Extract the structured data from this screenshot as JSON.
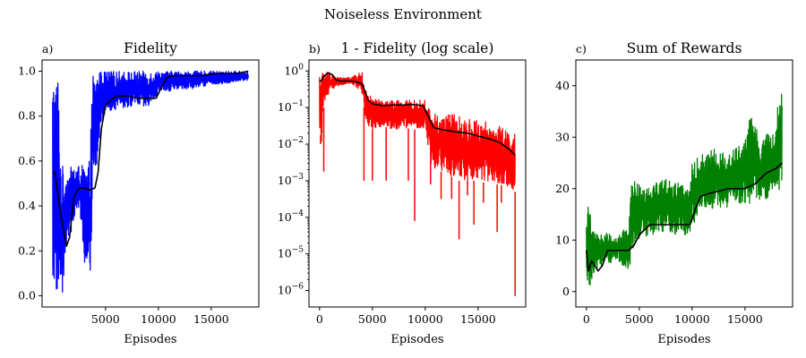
{
  "figure": {
    "title": "Noiseless Environment"
  },
  "chart_data": [
    {
      "type": "line",
      "panel_label": "a)",
      "title": "Fidelity",
      "xlabel": "Episodes",
      "ylabel": "",
      "xlim": [
        -1000,
        19500
      ],
      "ylim": [
        -0.05,
        1.05
      ],
      "log_y": false,
      "xticks": [
        5000,
        10000,
        15000
      ],
      "xtick_labels": [
        "5000",
        "10000",
        "15000"
      ],
      "yticks": [
        0.0,
        0.2,
        0.4,
        0.6,
        0.8,
        1.0
      ],
      "ytick_labels": [
        "0.0",
        "0.2",
        "0.4",
        "0.6",
        "0.8",
        "1.0"
      ],
      "colors": {
        "raw": "#0000ff",
        "smoothed": "#000000"
      },
      "series": [
        {
          "role": "raw-band-upper",
          "x": [
            0,
            300,
            500,
            800,
            1200,
            1600,
            2000,
            2500,
            3000,
            3500,
            3800,
            4000,
            4200,
            4500,
            5000,
            6000,
            7000,
            8000,
            9000,
            10000,
            11000,
            12000,
            13000,
            14000,
            15000,
            16000,
            17000,
            18500
          ],
          "y": [
            0.99,
            1.0,
            1.0,
            0.6,
            0.55,
            0.57,
            0.58,
            0.58,
            0.58,
            0.6,
            1.0,
            0.98,
            1.0,
            1.0,
            1.0,
            1.0,
            1.0,
            1.0,
            1.0,
            1.0,
            1.0,
            1.0,
            1.0,
            1.0,
            1.0,
            1.0,
            1.0,
            1.0
          ]
        },
        {
          "role": "raw-band-lower",
          "x": [
            0,
            300,
            500,
            800,
            1000,
            1200,
            1600,
            2000,
            2500,
            3000,
            3500,
            3800,
            4000,
            4200,
            4500,
            5000,
            6000,
            7000,
            8000,
            9000,
            10000,
            11000,
            12000,
            13000,
            14000,
            15000,
            16000,
            17000,
            18500
          ],
          "y": [
            0.0,
            0.0,
            0.0,
            0.0,
            0.0,
            0.2,
            0.23,
            0.35,
            0.38,
            0.13,
            0.0,
            0.45,
            0.5,
            0.55,
            0.75,
            0.82,
            0.83,
            0.84,
            0.84,
            0.83,
            0.9,
            0.91,
            0.92,
            0.92,
            0.93,
            0.94,
            0.94,
            0.95,
            0.96
          ]
        },
        {
          "role": "smoothed",
          "x": [
            0,
            200,
            400,
            700,
            1000,
            1300,
            1600,
            2000,
            2500,
            3000,
            3500,
            4000,
            4300,
            4600,
            5000,
            5500,
            6000,
            7000,
            8000,
            9000,
            9800,
            10300,
            10800,
            11500,
            12500,
            14000,
            15500,
            16500,
            17500,
            18500
          ],
          "y": [
            0.55,
            0.55,
            0.48,
            0.38,
            0.3,
            0.22,
            0.26,
            0.44,
            0.48,
            0.48,
            0.47,
            0.48,
            0.55,
            0.74,
            0.85,
            0.87,
            0.89,
            0.89,
            0.88,
            0.88,
            0.88,
            0.93,
            0.97,
            0.98,
            0.98,
            0.98,
            0.99,
            0.99,
            0.99,
            1.0
          ]
        }
      ]
    },
    {
      "type": "line",
      "panel_label": "b)",
      "title": "1 - Fidelity (log scale)",
      "xlabel": "Episodes",
      "ylabel": "",
      "xlim": [
        -1000,
        19500
      ],
      "ylim_log10": [
        -6.45,
        0.3
      ],
      "log_y": true,
      "xticks": [
        0,
        5000,
        10000,
        15000
      ],
      "xtick_labels": [
        "0",
        "5000",
        "10000",
        "15000"
      ],
      "yticks_log10": [
        -6,
        -5,
        -4,
        -3,
        -2,
        -1,
        0
      ],
      "ytick_bases": [
        "10",
        "10",
        "10",
        "10",
        "10",
        "10",
        "10"
      ],
      "ytick_exps": [
        "−6",
        "−5",
        "−4",
        "−3",
        "−2",
        "−1",
        "0"
      ],
      "colors": {
        "raw": "#ff0000",
        "smoothed": "#000000"
      },
      "series": [
        {
          "role": "raw-band-upper",
          "x": [
            0,
            400,
            800,
            1500,
            2500,
            3500,
            4000,
            4300,
            5000,
            6000,
            7000,
            8000,
            9000,
            10000,
            10500,
            11000,
            12000,
            13000,
            14000,
            15000,
            16000,
            17000,
            18500
          ],
          "y_log10": [
            0.0,
            0.0,
            0.0,
            -0.15,
            -0.2,
            -0.1,
            0.0,
            -0.5,
            -0.75,
            -0.8,
            -0.8,
            -0.8,
            -0.8,
            -0.8,
            -1.1,
            -1.15,
            -1.15,
            -1.2,
            -1.3,
            -1.35,
            -1.4,
            -1.5,
            -1.7
          ]
        },
        {
          "role": "raw-band-lower",
          "x": [
            0,
            200,
            400,
            800,
            1200,
            1500,
            2000,
            3000,
            3800,
            4000,
            4300,
            4600,
            5000,
            6000,
            7000,
            8000,
            9000,
            10000,
            10500,
            11000,
            12000,
            13000,
            14000,
            15000,
            16000,
            17000,
            18000,
            18500
          ],
          "y_log10": [
            -1.5,
            -2.0,
            -1.0,
            -0.7,
            -0.5,
            -0.45,
            -0.4,
            -0.35,
            -0.55,
            -0.6,
            -1.2,
            -1.5,
            -1.6,
            -1.5,
            -1.6,
            -1.55,
            -1.6,
            -1.6,
            -2.5,
            -2.7,
            -2.8,
            -3.0,
            -3.0,
            -3.0,
            -3.1,
            -3.1,
            -3.2,
            -3.3
          ]
        },
        {
          "role": "raw-spikes",
          "x": [
            0,
            100,
            400,
            4200,
            5000,
            6300,
            8400,
            9000,
            10500,
            11500,
            12500,
            13200,
            14000,
            14600,
            15500,
            16800,
            17200,
            18500
          ],
          "y_log10": [
            -1.5,
            -2.0,
            -2.75,
            -3.0,
            -3.0,
            -3.0,
            -3.0,
            -4.1,
            -3.1,
            -3.5,
            -3.5,
            -4.6,
            -3.4,
            -4.2,
            -3.6,
            -4.4,
            -3.6,
            -6.15
          ]
        },
        {
          "role": "smoothed",
          "x": [
            0,
            200,
            400,
            800,
            1200,
            1600,
            2000,
            2500,
            3000,
            3500,
            4000,
            4300,
            4600,
            5000,
            6000,
            7000,
            8000,
            9000,
            9800,
            10300,
            10800,
            11500,
            12500,
            14000,
            15000,
            16000,
            17000,
            18000,
            18500
          ],
          "y_log10": [
            -0.3,
            -0.25,
            -0.15,
            -0.05,
            -0.1,
            -0.25,
            -0.28,
            -0.28,
            -0.28,
            -0.3,
            -0.35,
            -0.55,
            -0.8,
            -0.9,
            -0.95,
            -0.93,
            -0.93,
            -0.92,
            -0.95,
            -1.25,
            -1.55,
            -1.6,
            -1.65,
            -1.7,
            -1.78,
            -1.85,
            -1.95,
            -2.15,
            -2.3
          ]
        }
      ]
    },
    {
      "type": "line",
      "panel_label": "c)",
      "title": "Sum of Rewards",
      "xlabel": "Episodes",
      "ylabel": "",
      "xlim": [
        -1000,
        19500
      ],
      "ylim": [
        -3,
        45
      ],
      "log_y": false,
      "xticks": [
        0,
        5000,
        10000,
        15000
      ],
      "xtick_labels": [
        "0",
        "5000",
        "10000",
        "15000"
      ],
      "yticks": [
        0,
        10,
        20,
        30,
        40
      ],
      "ytick_labels": [
        "0",
        "10",
        "20",
        "30",
        "40"
      ],
      "colors": {
        "raw": "#008000",
        "smoothed": "#000000"
      },
      "series": [
        {
          "role": "raw-band-upper",
          "x": [
            0,
            300,
            500,
            1000,
            1500,
            2000,
            2500,
            3000,
            3500,
            4000,
            4300,
            5000,
            6000,
            7000,
            8000,
            9000,
            9800,
            10000,
            11000,
            12000,
            13000,
            14000,
            15000,
            15500,
            16000,
            16500,
            17000,
            17500,
            18000,
            18300,
            18500
          ],
          "y": [
            14,
            19,
            12,
            11,
            12,
            12,
            10,
            11,
            12,
            13,
            22,
            21,
            21,
            22,
            22,
            21,
            20,
            25,
            27,
            28,
            27,
            28,
            29,
            35,
            33,
            28,
            31,
            30,
            35,
            38,
            43
          ]
        },
        {
          "role": "raw-band-lower",
          "x": [
            0,
            300,
            600,
            1000,
            1500,
            2000,
            2500,
            3000,
            3500,
            4000,
            4500,
            5000,
            6000,
            7000,
            8000,
            9000,
            9800,
            10500,
            11000,
            12000,
            13000,
            14000,
            15000,
            16000,
            17000,
            18000,
            18500
          ],
          "y": [
            -1,
            1,
            2,
            4,
            5,
            5,
            6,
            6,
            5,
            4,
            9,
            10,
            11,
            11,
            11,
            11,
            11,
            15,
            16,
            16,
            16,
            17,
            17,
            17,
            18,
            19,
            20
          ]
        },
        {
          "role": "smoothed",
          "x": [
            0,
            200,
            500,
            800,
            1100,
            1500,
            2000,
            2500,
            3000,
            3500,
            4000,
            4500,
            5000,
            5500,
            6000,
            7000,
            8000,
            9000,
            9800,
            10300,
            10800,
            11500,
            12500,
            13500,
            14500,
            15000,
            15500,
            16000,
            16500,
            17000,
            17500,
            18000,
            18500
          ],
          "y": [
            8,
            4,
            6,
            5,
            4,
            5,
            8,
            8,
            8,
            8,
            8,
            9,
            11,
            12,
            13,
            13,
            13,
            13,
            13,
            16,
            18.5,
            19,
            19.5,
            20,
            20,
            20,
            20.5,
            21,
            22,
            23,
            23.5,
            24,
            25
          ]
        }
      ]
    }
  ]
}
